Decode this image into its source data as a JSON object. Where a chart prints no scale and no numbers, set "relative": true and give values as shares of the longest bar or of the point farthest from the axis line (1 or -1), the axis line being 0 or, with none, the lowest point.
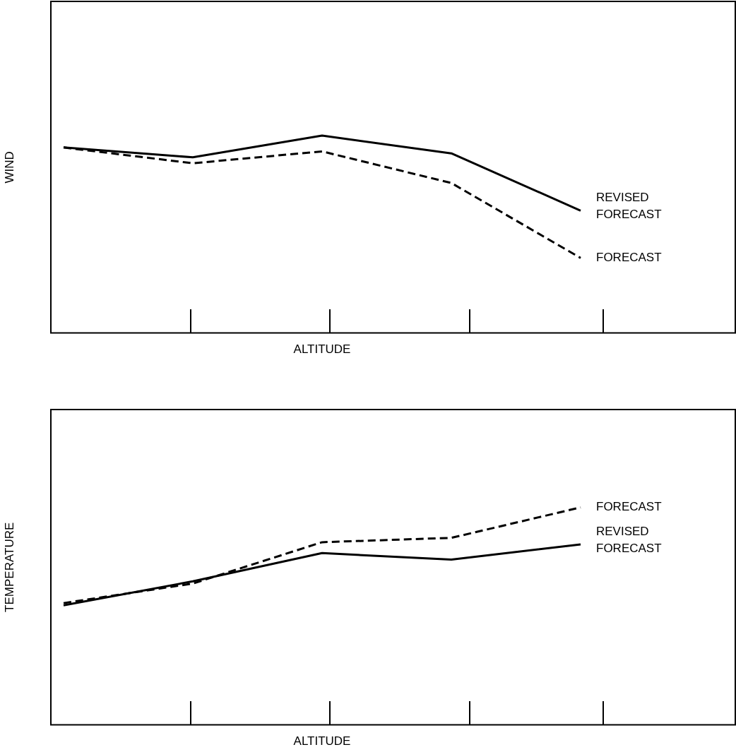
{
  "chart_data": [
    {
      "type": "line",
      "relative": true,
      "xlabel": "ALTITUDE",
      "ylabel": "WIND",
      "categories": [
        null,
        null,
        null,
        null,
        null
      ],
      "legend": false,
      "grid": false,
      "tick_labels": false,
      "marker": "none",
      "series": [
        {
          "name": "REVISED FORECAST",
          "color": "#000000",
          "line_style": "solid",
          "values": [
            0.94,
            0.89,
            1.0,
            0.91,
            0.62
          ]
        },
        {
          "name": "FORECAST",
          "color": "#000000",
          "line_style": "dashed",
          "values": [
            0.94,
            0.86,
            0.92,
            0.76,
            0.38
          ]
        }
      ]
    },
    {
      "type": "line",
      "relative": true,
      "xlabel": "ALTITUDE",
      "ylabel": "TEMPERATURE",
      "categories": [
        null,
        null,
        null,
        null,
        null
      ],
      "legend": false,
      "grid": false,
      "tick_labels": false,
      "marker": "none",
      "series": [
        {
          "name": "REVISED FORECAST",
          "color": "#000000",
          "line_style": "solid",
          "values": [
            0.55,
            0.66,
            0.79,
            0.76,
            0.83
          ]
        },
        {
          "name": "FORECAST",
          "color": "#000000",
          "line_style": "dashed",
          "values": [
            0.56,
            0.65,
            0.84,
            0.86,
            1.0
          ]
        }
      ]
    }
  ]
}
